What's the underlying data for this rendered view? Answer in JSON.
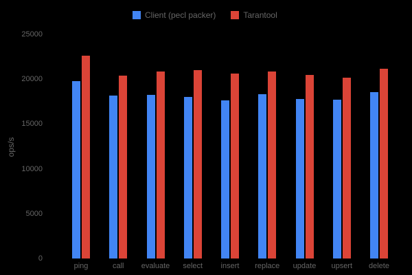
{
  "chart_data": {
    "type": "bar",
    "title": "",
    "xlabel": "",
    "ylabel": "ops/s",
    "ylim": [
      0,
      25000
    ],
    "yticks": [
      0,
      5000,
      10000,
      15000,
      20000,
      25000
    ],
    "grid": false,
    "legend_position": "top",
    "background_color": "#000000",
    "text_color": "#666666",
    "categories": [
      "ping",
      "call",
      "evaluate",
      "select",
      "insert",
      "replace",
      "update",
      "upsert",
      "delete"
    ],
    "series": [
      {
        "name": "Client (pecl packer)",
        "color": "#4285f4",
        "values": [
          19800,
          18200,
          18250,
          18000,
          17650,
          18300,
          17800,
          17700,
          18550
        ]
      },
      {
        "name": "Tarantool",
        "color": "#db4437",
        "values": [
          22650,
          20400,
          20850,
          21000,
          20650,
          20850,
          20500,
          20150,
          21150
        ]
      }
    ]
  }
}
